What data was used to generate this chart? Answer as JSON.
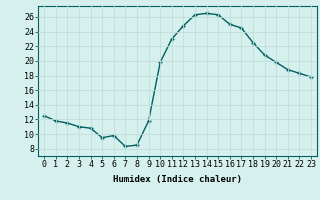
{
  "x": [
    0,
    1,
    2,
    3,
    4,
    5,
    6,
    7,
    8,
    9,
    10,
    11,
    12,
    13,
    14,
    15,
    16,
    17,
    18,
    19,
    20,
    21,
    22,
    23
  ],
  "y": [
    12.5,
    11.8,
    11.5,
    11.0,
    10.8,
    9.5,
    9.8,
    8.3,
    8.5,
    11.8,
    19.8,
    23.0,
    24.8,
    26.3,
    26.5,
    26.3,
    25.0,
    24.5,
    22.5,
    20.8,
    19.8,
    18.8,
    18.3,
    17.8
  ],
  "line_color": "#006060",
  "marker": "P",
  "marker_size": 2.5,
  "bg_color": "#d6f0ee",
  "grid_color": "#c0dedd",
  "xlabel": "Humidex (Indice chaleur)",
  "ylabel_ticks": [
    8,
    10,
    12,
    14,
    16,
    18,
    20,
    22,
    24,
    26
  ],
  "xtick_labels": [
    "0",
    "1",
    "2",
    "3",
    "4",
    "5",
    "6",
    "7",
    "8",
    "9",
    "10",
    "11",
    "12",
    "13",
    "14",
    "15",
    "16",
    "17",
    "18",
    "19",
    "20",
    "21",
    "22",
    "23"
  ],
  "ylim": [
    7.0,
    27.5
  ],
  "xlim": [
    -0.5,
    23.5
  ],
  "xlabel_fontsize": 6.5,
  "tick_fontsize": 6.0,
  "line_width": 1.0
}
